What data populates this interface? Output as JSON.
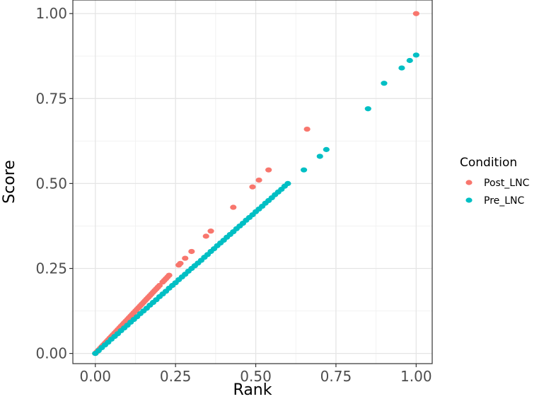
{
  "chart_data": {
    "type": "scatter",
    "title": "",
    "xlabel": "Rank",
    "ylabel": "Score",
    "xlim": [
      -0.07,
      1.05
    ],
    "ylim": [
      -0.03,
      1.04
    ],
    "x_ticks": [
      0.0,
      0.25,
      0.5,
      0.75,
      1.0
    ],
    "x_tick_labels": [
      "0.00",
      "0.25",
      "0.50",
      "0.75",
      "1.00"
    ],
    "y_ticks": [
      0.0,
      0.25,
      0.5,
      0.75,
      1.0
    ],
    "y_tick_labels": [
      "0.00",
      "0.25",
      "0.50",
      "0.75",
      "1.00"
    ],
    "grid": true,
    "legend": {
      "title": "Condition",
      "placement": "right"
    },
    "series": [
      {
        "name": "Post_LNC",
        "color": "#F8766D",
        "points": [
          [
            0.0,
            0.0
          ],
          [
            0.005,
            0.005
          ],
          [
            0.01,
            0.01
          ],
          [
            0.015,
            0.015
          ],
          [
            0.02,
            0.02
          ],
          [
            0.025,
            0.025
          ],
          [
            0.03,
            0.03
          ],
          [
            0.035,
            0.035
          ],
          [
            0.04,
            0.04
          ],
          [
            0.045,
            0.045
          ],
          [
            0.05,
            0.05
          ],
          [
            0.055,
            0.055
          ],
          [
            0.06,
            0.06
          ],
          [
            0.065,
            0.065
          ],
          [
            0.07,
            0.07
          ],
          [
            0.075,
            0.075
          ],
          [
            0.08,
            0.08
          ],
          [
            0.085,
            0.085
          ],
          [
            0.09,
            0.09
          ],
          [
            0.095,
            0.095
          ],
          [
            0.1,
            0.1
          ],
          [
            0.105,
            0.105
          ],
          [
            0.11,
            0.11
          ],
          [
            0.115,
            0.115
          ],
          [
            0.12,
            0.12
          ],
          [
            0.125,
            0.125
          ],
          [
            0.13,
            0.13
          ],
          [
            0.135,
            0.135
          ],
          [
            0.14,
            0.14
          ],
          [
            0.145,
            0.145
          ],
          [
            0.15,
            0.15
          ],
          [
            0.155,
            0.155
          ],
          [
            0.16,
            0.16
          ],
          [
            0.165,
            0.165
          ],
          [
            0.17,
            0.17
          ],
          [
            0.175,
            0.175
          ],
          [
            0.18,
            0.18
          ],
          [
            0.185,
            0.185
          ],
          [
            0.19,
            0.19
          ],
          [
            0.195,
            0.195
          ],
          [
            0.2,
            0.2
          ],
          [
            0.21,
            0.21
          ],
          [
            0.215,
            0.215
          ],
          [
            0.22,
            0.22
          ],
          [
            0.225,
            0.225
          ],
          [
            0.23,
            0.23
          ],
          [
            0.26,
            0.26
          ],
          [
            0.265,
            0.265
          ],
          [
            0.28,
            0.28
          ],
          [
            0.3,
            0.3
          ],
          [
            0.345,
            0.345
          ],
          [
            0.36,
            0.36
          ],
          [
            0.43,
            0.43
          ],
          [
            0.49,
            0.49
          ],
          [
            0.51,
            0.51
          ],
          [
            0.54,
            0.54
          ],
          [
            0.66,
            0.66
          ],
          [
            1.0,
            1.0
          ]
        ]
      },
      {
        "name": "Pre_LNC",
        "color": "#00BFC4",
        "points": [
          [
            0.0,
            0.0
          ],
          [
            0.01,
            0.008
          ],
          [
            0.02,
            0.017
          ],
          [
            0.03,
            0.025
          ],
          [
            0.04,
            0.033
          ],
          [
            0.05,
            0.042
          ],
          [
            0.06,
            0.05
          ],
          [
            0.07,
            0.058
          ],
          [
            0.08,
            0.067
          ],
          [
            0.09,
            0.075
          ],
          [
            0.1,
            0.083
          ],
          [
            0.11,
            0.092
          ],
          [
            0.12,
            0.1
          ],
          [
            0.13,
            0.108
          ],
          [
            0.14,
            0.117
          ],
          [
            0.15,
            0.125
          ],
          [
            0.16,
            0.133
          ],
          [
            0.17,
            0.142
          ],
          [
            0.18,
            0.15
          ],
          [
            0.19,
            0.158
          ],
          [
            0.2,
            0.167
          ],
          [
            0.21,
            0.175
          ],
          [
            0.22,
            0.183
          ],
          [
            0.23,
            0.192
          ],
          [
            0.24,
            0.2
          ],
          [
            0.25,
            0.208
          ],
          [
            0.26,
            0.217
          ],
          [
            0.27,
            0.225
          ],
          [
            0.28,
            0.233
          ],
          [
            0.29,
            0.242
          ],
          [
            0.3,
            0.25
          ],
          [
            0.31,
            0.258
          ],
          [
            0.32,
            0.266
          ],
          [
            0.33,
            0.274
          ],
          [
            0.34,
            0.283
          ],
          [
            0.35,
            0.291
          ],
          [
            0.36,
            0.3
          ],
          [
            0.37,
            0.308
          ],
          [
            0.38,
            0.317
          ],
          [
            0.39,
            0.325
          ],
          [
            0.4,
            0.333
          ],
          [
            0.41,
            0.342
          ],
          [
            0.42,
            0.35
          ],
          [
            0.43,
            0.358
          ],
          [
            0.44,
            0.367
          ],
          [
            0.45,
            0.375
          ],
          [
            0.46,
            0.383
          ],
          [
            0.47,
            0.392
          ],
          [
            0.48,
            0.4
          ],
          [
            0.49,
            0.408
          ],
          [
            0.5,
            0.417
          ],
          [
            0.51,
            0.425
          ],
          [
            0.52,
            0.433
          ],
          [
            0.53,
            0.442
          ],
          [
            0.54,
            0.45
          ],
          [
            0.55,
            0.458
          ],
          [
            0.56,
            0.467
          ],
          [
            0.57,
            0.475
          ],
          [
            0.58,
            0.483
          ],
          [
            0.59,
            0.492
          ],
          [
            0.6,
            0.5
          ],
          [
            0.65,
            0.54
          ],
          [
            0.7,
            0.58
          ],
          [
            0.72,
            0.6
          ],
          [
            0.85,
            0.72
          ],
          [
            0.9,
            0.795
          ],
          [
            0.955,
            0.84
          ],
          [
            0.98,
            0.862
          ],
          [
            1.0,
            0.878
          ]
        ]
      }
    ]
  }
}
